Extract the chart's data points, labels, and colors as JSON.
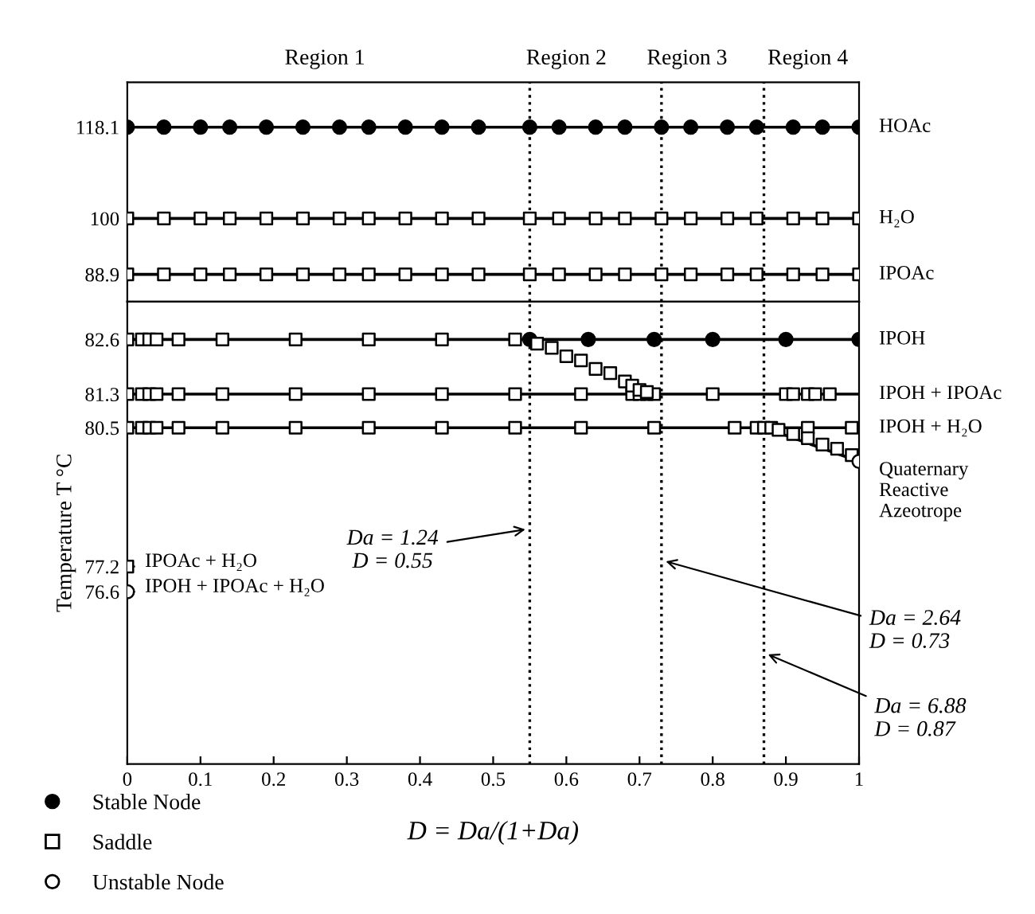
{
  "chart_data": [
    {
      "type": "scatter",
      "xlim": [
        0,
        1
      ],
      "ylim": [
        83.5,
        127
      ],
      "yticks": [
        88.9,
        100,
        118.1
      ],
      "tick_labels": "y",
      "grid": false,
      "series": [
        {
          "type": "line",
          "color": "#000000",
          "marker": "none",
          "line_style": "solid",
          "x": [
            0,
            1
          ],
          "values": [
            118.1,
            118.1
          ]
        },
        {
          "type": "line",
          "color": "#000000",
          "marker": "none",
          "line_style": "solid",
          "x": [
            0,
            1
          ],
          "values": [
            100,
            100
          ]
        },
        {
          "type": "line",
          "color": "#000000",
          "marker": "none",
          "line_style": "solid",
          "x": [
            0,
            1
          ],
          "values": [
            88.9,
            88.9
          ]
        },
        {
          "color": "#000000",
          "marker": "circle",
          "x": [
            0,
            0.05,
            0.1,
            0.14,
            0.19,
            0.24,
            0.29,
            0.33,
            0.38,
            0.43,
            0.48,
            0.55,
            0.59,
            0.64,
            0.68,
            0.73,
            0.77,
            0.82,
            0.86,
            0.91,
            0.95,
            1
          ],
          "values": [
            118.1,
            118.1,
            118.1,
            118.1,
            118.1,
            118.1,
            118.1,
            118.1,
            118.1,
            118.1,
            118.1,
            118.1,
            118.1,
            118.1,
            118.1,
            118.1,
            118.1,
            118.1,
            118.1,
            118.1,
            118.1,
            118.1
          ]
        },
        {
          "color": "#ffffff",
          "marker": "square",
          "x": [
            0,
            0.05,
            0.1,
            0.14,
            0.19,
            0.24,
            0.29,
            0.33,
            0.38,
            0.43,
            0.48,
            0.55,
            0.59,
            0.64,
            0.68,
            0.73,
            0.77,
            0.82,
            0.86,
            0.91,
            0.95,
            1,
            0,
            0.05,
            0.1,
            0.14,
            0.19,
            0.24,
            0.29,
            0.33,
            0.38,
            0.43,
            0.48,
            0.55,
            0.59,
            0.64,
            0.68,
            0.73,
            0.77,
            0.82,
            0.86,
            0.91,
            0.95,
            1
          ],
          "values": [
            100,
            100,
            100,
            100,
            100,
            100,
            100,
            100,
            100,
            100,
            100,
            100,
            100,
            100,
            100,
            100,
            100,
            100,
            100,
            100,
            100,
            100,
            88.9,
            88.9,
            88.9,
            88.9,
            88.9,
            88.9,
            88.9,
            88.9,
            88.9,
            88.9,
            88.9,
            88.9,
            88.9,
            88.9,
            88.9,
            88.9,
            88.9,
            88.9,
            88.9,
            88.9,
            88.9,
            88.9
          ]
        }
      ],
      "ref_lines": [
        {
          "axis": "x",
          "value": 0.55,
          "line_style": "dotted"
        },
        {
          "axis": "x",
          "value": 0.73,
          "line_style": "dotted"
        },
        {
          "axis": "x",
          "value": 0.87,
          "line_style": "dotted"
        }
      ],
      "annotations": [
        "Region 1",
        "Region 2",
        "Region 3",
        "Region 4",
        {
          "text": "HOAc",
          "x": 1,
          "y": 118.1
        },
        {
          "text": "H₂O",
          "x": 1,
          "y": 100
        },
        {
          "text": "IPOAc",
          "x": 1,
          "y": 88.9
        }
      ]
    },
    {
      "type": "scatter",
      "xlim": [
        0,
        1
      ],
      "ylim": [
        72.5,
        83.5
      ],
      "xticks": [
        0,
        0.1,
        0.2,
        0.3,
        0.4,
        0.5,
        0.6,
        0.7,
        0.8,
        0.9,
        1
      ],
      "yticks": [
        76.6,
        77.2,
        80.5,
        81.3,
        82.6
      ],
      "grid": false,
      "legend": "bottom left",
      "ylabel": "Temperature T °C",
      "xlabel": "D = Da/(1+Da)",
      "series": [
        {
          "type": "line",
          "color": "#000000",
          "marker": "none",
          "line_style": "solid",
          "x": [
            0,
            1
          ],
          "values": [
            82.6,
            82.6
          ]
        },
        {
          "type": "line",
          "color": "#000000",
          "marker": "none",
          "line_style": "solid",
          "x": [
            0,
            1
          ],
          "values": [
            81.3,
            81.3
          ]
        },
        {
          "type": "line",
          "color": "#000000",
          "marker": "none",
          "line_style": "solid",
          "x": [
            0,
            1
          ],
          "values": [
            80.5,
            80.5
          ]
        },
        {
          "type": "line",
          "color": "#000000",
          "marker": "none",
          "line_style": "solid",
          "x": [
            0.87,
            1
          ],
          "values": [
            80.5,
            79.7
          ]
        },
        {
          "name": "Stable Node",
          "color": "#000000",
          "marker": "circle",
          "x": [
            0.55,
            0.63,
            0.72,
            0.8,
            0.9,
            1
          ],
          "values": [
            82.6,
            82.6,
            82.6,
            82.6,
            82.6,
            82.6
          ]
        },
        {
          "name": "Saddle",
          "color": "#ffffff",
          "marker": "square",
          "x": [
            0,
            0.02,
            0.03,
            0.04,
            0.07,
            0.13,
            0.23,
            0.33,
            0.43,
            0.53,
            0,
            0.02,
            0.03,
            0.04,
            0.07,
            0.13,
            0.23,
            0.33,
            0.43,
            0.53,
            0.62,
            0.69,
            0.7,
            0.71,
            0.72,
            0.8,
            0.9,
            0.91,
            0.93,
            0.94,
            0.96,
            0,
            0.02,
            0.03,
            0.04,
            0.07,
            0.13,
            0.23,
            0.33,
            0.43,
            0.53,
            0.62,
            0.72,
            0.83,
            0.86,
            0.87,
            0.88,
            0.93,
            0.99,
            0.56,
            0.58,
            0.6,
            0.62,
            0.64,
            0.66,
            0.68,
            0.69,
            0.7,
            0.71,
            0.89,
            0.91,
            0.93,
            0.95,
            0.97,
            0.99,
            0
          ],
          "values": [
            82.6,
            82.6,
            82.6,
            82.6,
            82.6,
            82.6,
            82.6,
            82.6,
            82.6,
            82.6,
            81.3,
            81.3,
            81.3,
            81.3,
            81.3,
            81.3,
            81.3,
            81.3,
            81.3,
            81.3,
            81.3,
            81.3,
            81.3,
            81.3,
            81.3,
            81.3,
            81.3,
            81.3,
            81.3,
            81.3,
            81.3,
            80.5,
            80.5,
            80.5,
            80.5,
            80.5,
            80.5,
            80.5,
            80.5,
            80.5,
            80.5,
            80.5,
            80.5,
            80.5,
            80.5,
            80.5,
            80.5,
            80.5,
            80.5,
            82.5,
            82.4,
            82.2,
            82.1,
            81.9,
            81.8,
            81.6,
            81.5,
            81.4,
            81.35,
            80.45,
            80.35,
            80.25,
            80.1,
            80.0,
            79.85,
            77.2
          ]
        },
        {
          "name": "Unstable Node",
          "color": "#ffffff",
          "marker": "circle",
          "x": [
            1,
            0
          ],
          "values": [
            79.7,
            76.6
          ]
        }
      ],
      "ref_lines": [
        {
          "axis": "x",
          "value": 0.55,
          "line_style": "dotted"
        },
        {
          "axis": "x",
          "value": 0.73,
          "line_style": "dotted"
        },
        {
          "axis": "x",
          "value": 0.87,
          "line_style": "dotted"
        }
      ],
      "annotations": [
        {
          "text": "IPOH",
          "x": 1,
          "y": 82.6
        },
        {
          "text": "IPOH + IPOAc",
          "x": 1,
          "y": 81.3
        },
        {
          "text": "IPOH + H₂O",
          "x": 1,
          "y": 80.5
        },
        {
          "text": "Quaternary\nReactive\nAzeotrope",
          "x": 1,
          "y": 79.7
        },
        {
          "text": "IPOAc + H₂O",
          "x": 0,
          "y": 77.2
        },
        {
          "text": "IPOH + IPOAc + H₂O",
          "x": 0,
          "y": 76.6
        },
        {
          "text": "Da = 1.24\nD = 0.55",
          "x": 0.55,
          "y": 78.1
        },
        {
          "text": "Da = 2.64\nD = 0.73",
          "x": 0.73,
          "y": 77.35
        },
        {
          "text": "Da = 6.88\nD = 0.87",
          "x": 0.87,
          "y": 75.15
        }
      ]
    }
  ]
}
